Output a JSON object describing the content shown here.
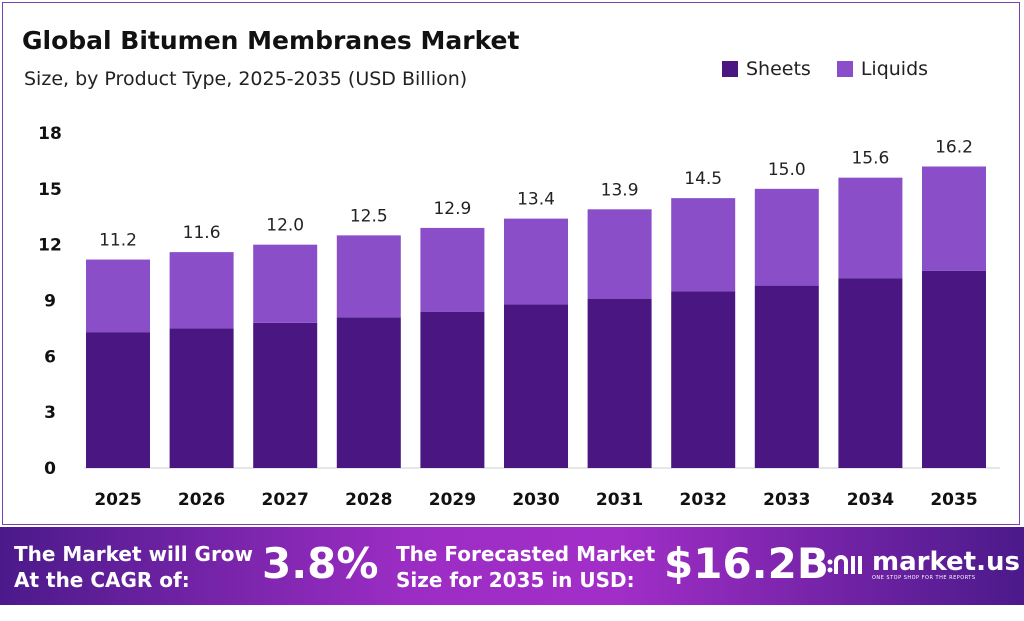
{
  "chart_data": {
    "type": "bar",
    "stacked": true,
    "title": "Global Bitumen Membranes Market",
    "subtitle": "Size, by Product Type, 2025-2035 (USD Billion)",
    "categories": [
      "2025",
      "2026",
      "2027",
      "2028",
      "2029",
      "2030",
      "2031",
      "2032",
      "2033",
      "2034",
      "2035"
    ],
    "series": [
      {
        "name": "Sheets",
        "color": "#4a1782",
        "values": [
          7.3,
          7.5,
          7.8,
          8.1,
          8.4,
          8.8,
          9.1,
          9.5,
          9.8,
          10.2,
          10.6
        ]
      },
      {
        "name": "Liquids",
        "color": "#8a4fc8",
        "values": [
          3.9,
          4.1,
          4.2,
          4.4,
          4.5,
          4.6,
          4.8,
          5.0,
          5.2,
          5.4,
          5.6
        ]
      }
    ],
    "totals": [
      "11.2",
      "11.6",
      "12.0",
      "12.5",
      "12.9",
      "13.4",
      "13.9",
      "14.5",
      "15.0",
      "15.6",
      "16.2"
    ],
    "ylim": [
      0,
      18
    ],
    "yticks": [
      "0",
      "3",
      "6",
      "9",
      "12",
      "15",
      "18"
    ],
    "grid": false,
    "legend": "top-right",
    "xlabel": "",
    "ylabel": ""
  },
  "footer": {
    "cagr_label": "The Market will Grow At the CAGR of:",
    "cagr_value": "3.8%",
    "forecast_label": "The Forecasted Market Size for 2035 in USD:",
    "forecast_value": "$16.2B",
    "brand": "market.us",
    "brand_tagline": "ONE STOP SHOP FOR THE REPORTS"
  }
}
